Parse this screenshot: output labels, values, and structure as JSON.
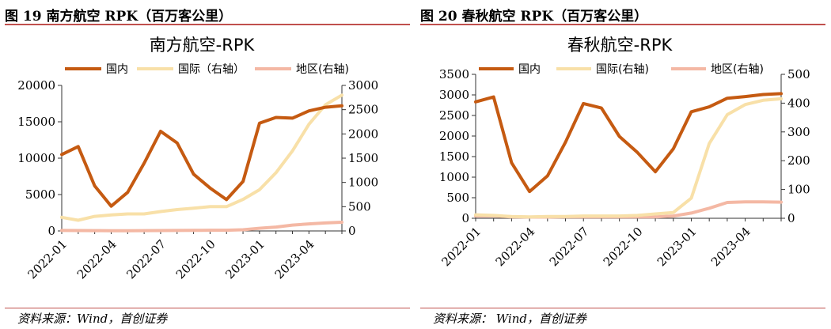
{
  "figures": [
    {
      "caption": "图 19 南方航空 RPK（百万客公里）",
      "source": "资料来源：Wind，首创证券",
      "chart_data": {
        "type": "line",
        "title": "南方航空-RPK",
        "x": [
          "2022-01",
          "2022-02",
          "2022-03",
          "2022-04",
          "2022-05",
          "2022-06",
          "2022-07",
          "2022-08",
          "2022-09",
          "2022-10",
          "2022-11",
          "2022-12",
          "2023-01",
          "2023-02",
          "2023-03",
          "2023-04",
          "2023-05",
          "2023-06"
        ],
        "x_tick_labels": [
          "2022-01",
          "2022-04",
          "2022-07",
          "2022-10",
          "2023-01",
          "2023-04"
        ],
        "y_left": {
          "lim": [
            0,
            20000
          ],
          "ticks": [
            "0",
            "5000",
            "10000",
            "15000",
            "20000"
          ]
        },
        "y_right": {
          "lim": [
            0,
            3000
          ],
          "ticks": [
            "0",
            "500",
            "1000",
            "1500",
            "2000",
            "2500",
            "3000"
          ]
        },
        "legend_position": "top",
        "series": [
          {
            "name": "国内",
            "axis": "left",
            "color": "#c55a11",
            "values": [
              10500,
              11600,
              6200,
              3400,
              5300,
              9300,
              13700,
              12100,
              7800,
              5900,
              4300,
              6800,
              14800,
              15600,
              15500,
              16500,
              17000,
              17200
            ]
          },
          {
            "name": "国际（右轴）",
            "axis": "right",
            "color": "#f8e0a8",
            "values": [
              280,
              220,
              300,
              330,
              350,
              350,
              400,
              440,
              470,
              500,
              500,
              650,
              850,
              1200,
              1650,
              2200,
              2600,
              2800
            ]
          },
          {
            "name": "地区(右轴)",
            "axis": "right",
            "color": "#f4b8a4",
            "values": [
              10,
              8,
              6,
              5,
              5,
              6,
              8,
              10,
              12,
              15,
              15,
              25,
              55,
              80,
              120,
              145,
              165,
              180
            ]
          }
        ]
      }
    },
    {
      "caption": "图 20 春秋航空 RPK（百万客公里）",
      "source": "资料来源： Wind，首创证券",
      "chart_data": {
        "type": "line",
        "title": "春秋航空-RPK",
        "x": [
          "2022-01",
          "2022-02",
          "2022-03",
          "2022-04",
          "2022-05",
          "2022-06",
          "2022-07",
          "2022-08",
          "2022-09",
          "2022-10",
          "2022-11",
          "2022-12",
          "2023-01",
          "2023-02",
          "2023-03",
          "2023-04",
          "2023-05",
          "2023-06"
        ],
        "x_tick_labels": [
          "2022-01",
          "2022-04",
          "2022-07",
          "2022-10",
          "2023-01",
          "2023-04"
        ],
        "y_left": {
          "lim": [
            0,
            3500
          ],
          "ticks": [
            "0",
            "500",
            "1000",
            "1500",
            "2000",
            "2500",
            "3000",
            "3500"
          ]
        },
        "y_right": {
          "lim": [
            0,
            500
          ],
          "ticks": [
            "0",
            "100",
            "200",
            "300",
            "400",
            "500"
          ]
        },
        "legend_position": "top",
        "series": [
          {
            "name": "国内",
            "axis": "left",
            "color": "#c55a11",
            "values": [
              2830,
              2950,
              1350,
              650,
              1030,
              1850,
              2790,
              2680,
              1990,
              1600,
              1130,
              1690,
              2590,
              2710,
              2920,
              2960,
              3010,
              3030
            ]
          },
          {
            "name": "国际(右轴)",
            "axis": "right",
            "color": "#f8e0a8",
            "values": [
              12,
              10,
              6,
              5,
              6,
              6,
              8,
              8,
              8,
              10,
              15,
              20,
              70,
              260,
              360,
              395,
              410,
              415
            ]
          },
          {
            "name": "地区(右轴)",
            "axis": "right",
            "color": "#f4b8a4",
            "values": [
              8,
              8,
              5,
              4,
              4,
              5,
              5,
              5,
              5,
              5,
              5,
              8,
              18,
              35,
              55,
              57,
              57,
              56
            ]
          }
        ]
      }
    }
  ]
}
